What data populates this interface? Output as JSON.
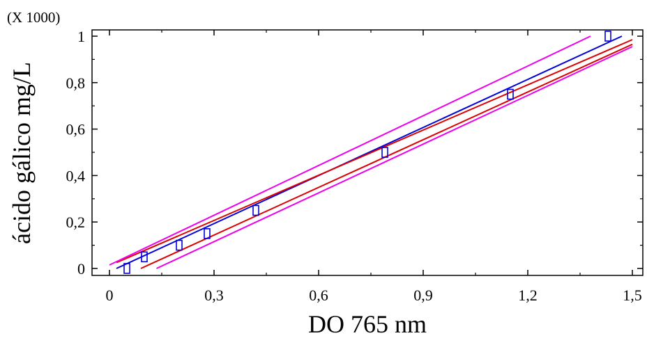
{
  "chart_data": {
    "type": "line",
    "xlabel": "DO 765 nm",
    "ylabel": "ácido gálico mg/L",
    "y_scale_label": "(X 1000)",
    "xlim": [
      0,
      1.5
    ],
    "ylim": [
      0,
      1.0
    ],
    "x_ticks": [
      0,
      0.3,
      0.6,
      0.9,
      1.2,
      1.5
    ],
    "x_tick_labels": [
      "0",
      "0,3",
      "0,6",
      "0,9",
      "1,2",
      "1,5"
    ],
    "y_ticks": [
      0,
      0.2,
      0.4,
      0.6,
      0.8,
      1.0
    ],
    "y_tick_labels": [
      "0",
      "0,2",
      "0,4",
      "0,6",
      "0,8",
      "1"
    ],
    "grid": false,
    "points": {
      "x": [
        0.05,
        0.1,
        0.2,
        0.28,
        0.42,
        0.79,
        1.15,
        1.43
      ],
      "y": [
        0.0,
        0.05,
        0.1,
        0.15,
        0.25,
        0.5,
        0.75,
        1.0
      ],
      "color": "#0000dd"
    },
    "series": [
      {
        "x": [
          0.02,
          1.47
        ],
        "y": [
          0.0,
          1.0
        ],
        "color": "#0000dd"
      },
      {
        "x": [
          0.02,
          1.5
        ],
        "y": [
          0.025,
          0.985
        ],
        "color": "#dd0000"
      },
      {
        "x": [
          0.09,
          1.5
        ],
        "y": [
          0.0,
          0.965
        ],
        "color": "#dd0000"
      },
      {
        "x": [
          0.0,
          1.38
        ],
        "y": [
          0.015,
          1.0
        ],
        "color": "#ee00ee"
      },
      {
        "x": [
          0.135,
          1.5
        ],
        "y": [
          0.0,
          0.955
        ],
        "color": "#ee00ee"
      }
    ]
  }
}
